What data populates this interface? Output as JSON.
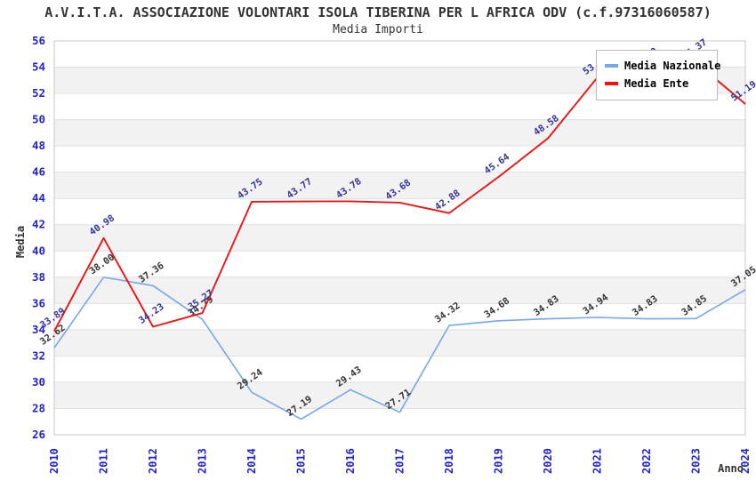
{
  "header": {
    "title": "A.V.I.T.A. ASSOCIAZIONE VOLONTARI ISOLA TIBERINA PER L AFRICA ODV (c.f.97316060587)",
    "subtitle": "Media Importi"
  },
  "chart_data": {
    "type": "line",
    "title": "A.V.I.T.A. ASSOCIAZIONE VOLONTARI ISOLA TIBERINA PER L AFRICA ODV (c.f.97316060587)",
    "subtitle": "Media Importi",
    "xlabel": "Anno",
    "ylabel": "Media",
    "x": [
      2010,
      2011,
      2012,
      2013,
      2014,
      2015,
      2016,
      2017,
      2018,
      2019,
      2020,
      2021,
      2022,
      2023,
      2024
    ],
    "ylim": [
      26,
      56
    ],
    "ytick_step": 2,
    "grid": "horizontal alternating shaded bands every 2 units",
    "legend_position": "top-right",
    "series": [
      {
        "name": "Media Nazionale",
        "color": "#74a9e8",
        "label_color": "#333333",
        "values": [
          32.62,
          38.0,
          37.36,
          34.79,
          29.24,
          27.19,
          29.43,
          27.71,
          34.32,
          34.68,
          34.83,
          34.94,
          34.83,
          34.85,
          37.05
        ]
      },
      {
        "name": "Media Ente",
        "color": "#ee1414",
        "label_color": "#333399",
        "values": [
          33.89,
          40.98,
          34.23,
          35.27,
          43.75,
          43.77,
          43.78,
          43.68,
          42.88,
          45.64,
          48.58,
          53.2,
          53.7,
          54.37,
          51.19
        ],
        "note": "2021 and 2022 point labels are covered by the legend box; their values are estimated from the line pixels (2021 label begins with 53)."
      }
    ],
    "colors": {
      "axis_tick_labels": "#2323cc",
      "axis_titles": "#333333",
      "grid_band": "#f2f2f2",
      "grid_line": "#e0e0e0",
      "plot_border": "#c8c8c8",
      "title_text": "#333333"
    }
  }
}
